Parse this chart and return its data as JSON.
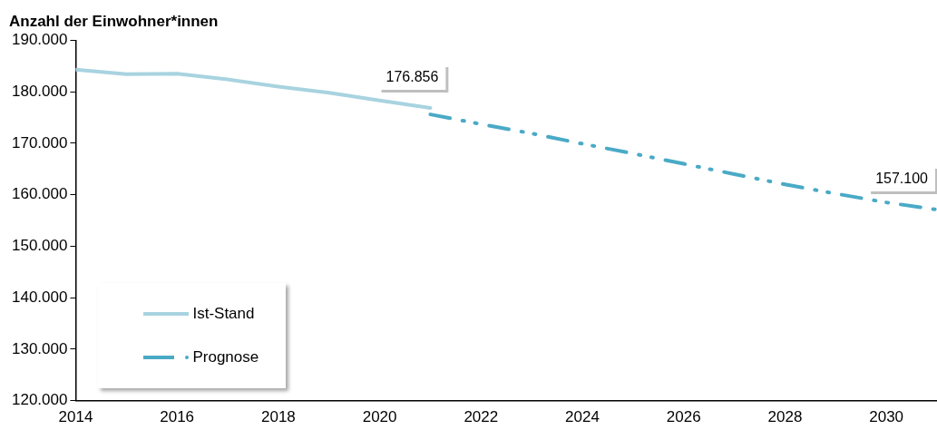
{
  "chart_data": {
    "type": "line",
    "title": "Anzahl der Einwohner*innen",
    "series": [
      {
        "name": "Ist-Stand",
        "color": "#a8d3e0",
        "line_style": "solid",
        "x": [
          2014,
          2015,
          2016,
          2017,
          2018,
          2019,
          2020,
          2021
        ],
        "values": [
          184300,
          183400,
          183500,
          182400,
          181000,
          179800,
          178300,
          176856
        ]
      },
      {
        "name": "Prognose",
        "color": "#4aaac6",
        "line_style": "dashed",
        "x": [
          2021,
          2022,
          2023,
          2024,
          2025,
          2026,
          2027,
          2028,
          2029,
          2030,
          2031
        ],
        "values": [
          175600,
          173700,
          171900,
          169900,
          168000,
          166000,
          164000,
          162000,
          160200,
          158500,
          157100
        ]
      }
    ],
    "xlim": [
      2014,
      2031
    ],
    "xticks": [
      2014,
      2016,
      2018,
      2020,
      2022,
      2024,
      2026,
      2028,
      2030
    ],
    "ylim": [
      120000,
      190000
    ],
    "yticks": [
      {
        "value": 120000,
        "label": "120.000"
      },
      {
        "value": 130000,
        "label": "130.000"
      },
      {
        "value": 140000,
        "label": "140.000"
      },
      {
        "value": 150000,
        "label": "150.000"
      },
      {
        "value": 160000,
        "label": "160.000"
      },
      {
        "value": 170000,
        "label": "170.000"
      },
      {
        "value": 180000,
        "label": "180.000"
      },
      {
        "value": 190000,
        "label": "190.000"
      }
    ],
    "annotations": [
      {
        "text": "176.856",
        "x": 2021,
        "y": 176856
      },
      {
        "text": "157.100",
        "x": 2031,
        "y": 157100
      }
    ],
    "grid": false,
    "legend": "bottom left",
    "marker": "none"
  }
}
